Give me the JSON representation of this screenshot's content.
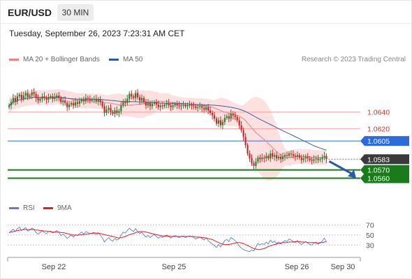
{
  "header": {
    "symbol": "EUR/USD",
    "timeframe": "30 MIN"
  },
  "timestamp": "Tuesday, September 26, 2023 7:23:31 AM CET",
  "legend": {
    "items": [
      {
        "label": "MA 20 + Bollinger Bands",
        "color": "#f08080"
      },
      {
        "label": "MA 50",
        "color": "#2e5a9c"
      }
    ],
    "copyright": "Research © 2023 Trading Central"
  },
  "rsi_legend": {
    "items": [
      {
        "label": "RSI",
        "color": "#5b7fd6"
      },
      {
        "label": "9MA",
        "color": "#e02020"
      }
    ]
  },
  "colors": {
    "up_candle": "#2e7d32",
    "down_candle": "#c62828",
    "bollinger_fill": "#fde0e0",
    "ma20": "#f08080",
    "ma50": "#3b5fa8",
    "resistance": "#f4a6a6",
    "pivot": "#2f6ad9",
    "support": "#1b7a1b",
    "last_price": "#3a3a3a",
    "arrow": "#2a5aa8"
  },
  "chart_data": {
    "type": "candlestick",
    "x_ticks": [
      "Sep 22",
      "Sep 25",
      "Sep 26",
      "Sep 30"
    ],
    "price_axis": {
      "ylim": [
        1.0552,
        1.0676
      ]
    },
    "levels": [
      {
        "value": 1.064,
        "label": "1.0640",
        "kind": "resistance"
      },
      {
        "value": 1.062,
        "label": "1.0620",
        "kind": "resistance"
      },
      {
        "value": 1.0605,
        "label": "1.0605",
        "kind": "pivot"
      },
      {
        "value": 1.057,
        "label": "1.0570",
        "kind": "support"
      },
      {
        "value": 1.056,
        "label": "1.0560",
        "kind": "support"
      }
    ],
    "last_price": {
      "value": 1.0583,
      "label": "1.0583"
    },
    "close": [
      1.0648,
      1.0652,
      1.0657,
      1.0653,
      1.0659,
      1.0661,
      1.0656,
      1.066,
      1.0663,
      1.0658,
      1.066,
      1.0664,
      1.0662,
      1.0657,
      1.0654,
      1.0656,
      1.0659,
      1.0657,
      1.0655,
      1.0658,
      1.0659,
      1.0656,
      1.0658,
      1.066,
      1.0657,
      1.0652,
      1.0654,
      1.0651,
      1.0646,
      1.0649,
      1.0651,
      1.0648,
      1.0652,
      1.065,
      1.0653,
      1.0655,
      1.0653,
      1.0657,
      1.0656,
      1.0654,
      1.0655,
      1.0656,
      1.0653,
      1.0655,
      1.0652,
      1.0647,
      1.0639,
      1.0643,
      1.0645,
      1.064,
      1.0638,
      1.0642,
      1.0639,
      1.0641,
      1.0648,
      1.0653,
      1.0651,
      1.0656,
      1.0662,
      1.0659,
      1.0657,
      1.0663,
      1.0658,
      1.0654,
      1.0657,
      1.0652,
      1.0648,
      1.0651,
      1.0647,
      1.065,
      1.0652,
      1.0649,
      1.0646,
      1.0648,
      1.0647,
      1.0649,
      1.0651,
      1.0648,
      1.0646,
      1.0648,
      1.065,
      1.0648,
      1.0647,
      1.0648,
      1.0649,
      1.0647,
      1.0648,
      1.0649,
      1.0648,
      1.0647,
      1.0645,
      1.0646,
      1.0647,
      1.0645,
      1.0643,
      1.0646,
      1.0642,
      1.0639,
      1.0636,
      1.0632,
      1.0626,
      1.063,
      1.0624,
      1.0628,
      1.0633,
      1.0635,
      1.0632,
      1.0638,
      1.0636,
      1.0634,
      1.063,
      1.0624,
      1.0618,
      1.061,
      1.06,
      1.059,
      1.0584,
      1.0578,
      1.0575,
      1.058,
      1.0585,
      1.0583,
      1.0585,
      1.0584,
      1.0587,
      1.0584,
      1.059,
      1.0586,
      1.0588,
      1.0584,
      1.0586,
      1.0583,
      1.0586,
      1.0588,
      1.0587,
      1.059,
      1.0589,
      1.0587,
      1.0586,
      1.0588,
      1.0585,
      1.0582,
      1.0584,
      1.0586,
      1.0584,
      1.0582,
      1.0581,
      1.0583,
      1.0584,
      1.0582,
      1.0583,
      1.0585,
      1.0587,
      1.0583
    ],
    "arrow": {
      "from_price": 1.0583,
      "to_price": 1.0565
    },
    "rsi": {
      "levels": [
        70,
        50,
        30
      ],
      "ylim": [
        15,
        85
      ],
      "rsi": [
        54,
        58,
        62,
        57,
        63,
        66,
        59,
        62,
        65,
        58,
        60,
        64,
        61,
        55,
        52,
        55,
        58,
        55,
        53,
        57,
        58,
        54,
        56,
        59,
        55,
        49,
        52,
        48,
        43,
        47,
        50,
        46,
        51,
        49,
        53,
        56,
        52,
        57,
        55,
        53,
        54,
        55,
        51,
        54,
        50,
        44,
        36,
        41,
        45,
        40,
        38,
        43,
        40,
        42,
        50,
        56,
        54,
        59,
        64,
        60,
        57,
        63,
        57,
        53,
        56,
        50,
        46,
        49,
        45,
        48,
        51,
        47,
        44,
        47,
        45,
        48,
        50,
        47,
        44,
        47,
        49,
        47,
        45,
        47,
        48,
        45,
        47,
        48,
        47,
        45,
        42,
        44,
        46,
        43,
        40,
        45,
        39,
        35,
        32,
        29,
        25,
        31,
        26,
        32,
        39,
        41,
        37,
        45,
        42,
        39,
        34,
        28,
        24,
        21,
        19,
        18,
        17,
        20,
        18,
        26,
        33,
        30,
        33,
        31,
        36,
        32,
        40,
        35,
        38,
        33,
        36,
        32,
        36,
        39,
        37,
        42,
        40,
        37,
        35,
        39,
        34,
        31,
        34,
        37,
        34,
        31,
        30,
        34,
        36,
        32,
        34,
        38,
        44,
        37
      ],
      "ma9": [
        55,
        56,
        57,
        58,
        59,
        60,
        60,
        61,
        61,
        61,
        61,
        61,
        61,
        60,
        60,
        59,
        59,
        58,
        58,
        57,
        57,
        56,
        56,
        56,
        56,
        55,
        55,
        54,
        53,
        52,
        51,
        50,
        50,
        50,
        50,
        51,
        51,
        52,
        52,
        53,
        53,
        54,
        54,
        54,
        53,
        52,
        51,
        50,
        49,
        48,
        47,
        46,
        45,
        44,
        45,
        46,
        47,
        49,
        51,
        52,
        53,
        55,
        56,
        57,
        57,
        57,
        56,
        55,
        54,
        53,
        52,
        51,
        50,
        49,
        48,
        48,
        48,
        48,
        47,
        47,
        47,
        47,
        47,
        47,
        47,
        47,
        47,
        47,
        47,
        47,
        46,
        46,
        46,
        45,
        45,
        44,
        43,
        42,
        41,
        39,
        37,
        35,
        33,
        32,
        31,
        31,
        31,
        32,
        33,
        34,
        35,
        35,
        34,
        33,
        31,
        29,
        27,
        25,
        23,
        22,
        21,
        21,
        22,
        23,
        25,
        27,
        28,
        30,
        31,
        32,
        33,
        34,
        35,
        35,
        35,
        36,
        36,
        36,
        37,
        37,
        37,
        36,
        36,
        36,
        35,
        35,
        35,
        35,
        34,
        34,
        35,
        35,
        36,
        37
      ]
    }
  }
}
